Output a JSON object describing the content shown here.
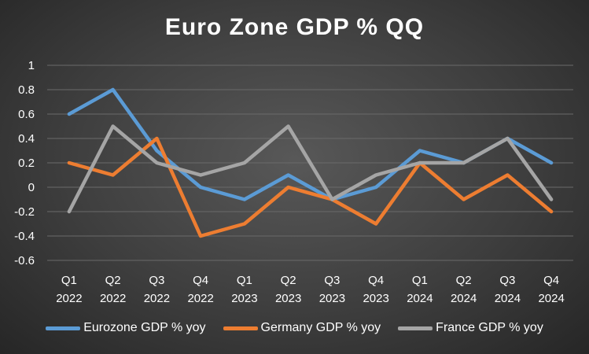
{
  "chart_data": {
    "type": "line",
    "title": "Euro Zone GDP % QQ",
    "categories": [
      [
        "Q1",
        "2022"
      ],
      [
        "Q2",
        "2022"
      ],
      [
        "Q3",
        "2022"
      ],
      [
        "Q4",
        "2022"
      ],
      [
        "Q1",
        "2023"
      ],
      [
        "Q2",
        "2023"
      ],
      [
        "Q3",
        "2023"
      ],
      [
        "Q4",
        "2023"
      ],
      [
        "Q1",
        "2024"
      ],
      [
        "Q2",
        "2024"
      ],
      [
        "Q3",
        "2024"
      ],
      [
        "Q4",
        "2024"
      ]
    ],
    "ylim": [
      -0.6,
      1
    ],
    "yticks": [
      "1",
      "0.8",
      "0.6",
      "0.4",
      "0.2",
      "0",
      "-0.2",
      "-0.4",
      "-0.6"
    ],
    "ytick_values": [
      1,
      0.8,
      0.6,
      0.4,
      0.2,
      0,
      -0.2,
      -0.4,
      -0.6
    ],
    "grid": true,
    "legend_position": "bottom",
    "series": [
      {
        "name": "Eurozone GDP % yoy",
        "color": "#5b9bd5",
        "values": [
          0.6,
          0.8,
          0.3,
          0.0,
          -0.1,
          0.1,
          -0.1,
          0.0,
          0.3,
          0.2,
          0.4,
          0.2
        ]
      },
      {
        "name": "Germany GDP % yoy",
        "color": "#ed7d31",
        "values": [
          0.2,
          0.1,
          0.4,
          -0.4,
          -0.3,
          0.0,
          -0.1,
          -0.3,
          0.2,
          -0.1,
          0.1,
          -0.2
        ]
      },
      {
        "name": "France GDP % yoy",
        "color": "#a5a5a5",
        "values": [
          -0.2,
          0.5,
          0.2,
          0.1,
          0.2,
          0.5,
          -0.1,
          0.1,
          0.2,
          0.2,
          0.4,
          -0.1
        ]
      }
    ]
  }
}
